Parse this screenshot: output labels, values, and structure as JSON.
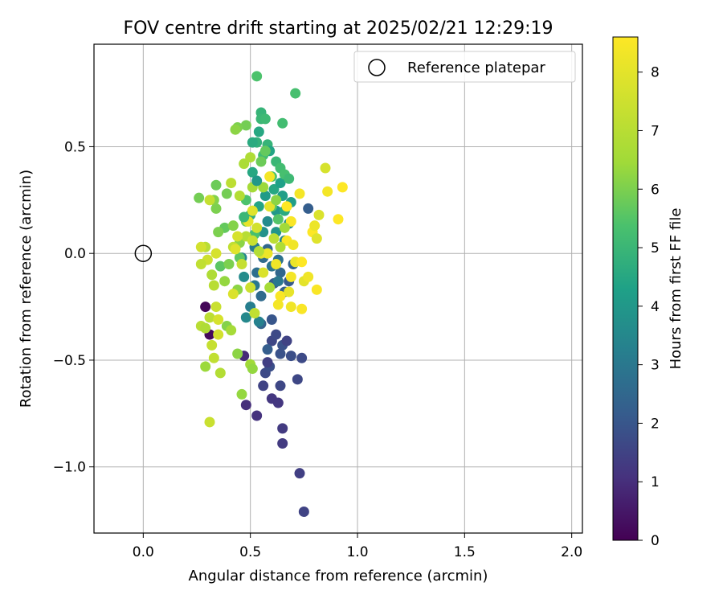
{
  "chart_data": {
    "type": "scatter",
    "title": "FOV centre drift starting at 2025/02/21 12:29:19",
    "xlabel": "Angular distance from reference (arcmin)",
    "ylabel": "Rotation from reference (arcmin)",
    "xlim": [
      -0.23,
      2.05
    ],
    "ylim": [
      -1.31,
      0.98
    ],
    "xticks": [
      {
        "value": 0.0,
        "label": "0.0"
      },
      {
        "value": 0.5,
        "label": "0.5"
      },
      {
        "value": 1.0,
        "label": "1.0"
      },
      {
        "value": 1.5,
        "label": "1.5"
      },
      {
        "value": 2.0,
        "label": "2.0"
      }
    ],
    "yticks": [
      {
        "value": 0.5,
        "label": "0.5"
      },
      {
        "value": 0.0,
        "label": "0.0"
      },
      {
        "value": -0.5,
        "label": "−0.5"
      },
      {
        "value": -1.0,
        "label": "−1.0"
      }
    ],
    "grid": true,
    "legend": {
      "position": "top-right",
      "entries": [
        {
          "label": "Reference platepar",
          "marker": "hollow-circle"
        }
      ]
    },
    "reference_point": {
      "x": 0.0,
      "y": 0.0
    },
    "colorbar": {
      "label": "Hours from first FF file",
      "colormap": "viridis",
      "range": [
        0,
        8.6
      ],
      "ticks": [
        {
          "value": 0,
          "label": "0"
        },
        {
          "value": 1,
          "label": "1"
        },
        {
          "value": 2,
          "label": "2"
        },
        {
          "value": 3,
          "label": "3"
        },
        {
          "value": 4,
          "label": "4"
        },
        {
          "value": 5,
          "label": "5"
        },
        {
          "value": 6,
          "label": "6"
        },
        {
          "value": 7,
          "label": "7"
        },
        {
          "value": 8,
          "label": "8"
        }
      ]
    },
    "points": [
      {
        "x": 0.29,
        "y": -0.25,
        "t": 0.1
      },
      {
        "x": 0.31,
        "y": -0.38,
        "t": 0.2
      },
      {
        "x": 0.47,
        "y": -0.48,
        "t": 0.9
      },
      {
        "x": 0.48,
        "y": -0.71,
        "t": 1.0
      },
      {
        "x": 0.53,
        "y": -0.76,
        "t": 1.1
      },
      {
        "x": 0.6,
        "y": -0.68,
        "t": 1.2
      },
      {
        "x": 0.63,
        "y": -0.7,
        "t": 1.2
      },
      {
        "x": 0.65,
        "y": -0.89,
        "t": 1.3
      },
      {
        "x": 0.65,
        "y": -0.82,
        "t": 1.3
      },
      {
        "x": 0.73,
        "y": -1.03,
        "t": 1.4
      },
      {
        "x": 0.75,
        "y": -1.21,
        "t": 1.5
      },
      {
        "x": 0.56,
        "y": -0.62,
        "t": 1.5
      },
      {
        "x": 0.57,
        "y": -0.56,
        "t": 1.7
      },
      {
        "x": 0.59,
        "y": -0.53,
        "t": 1.8
      },
      {
        "x": 0.64,
        "y": -0.62,
        "t": 1.6
      },
      {
        "x": 0.58,
        "y": -0.51,
        "t": 1.4
      },
      {
        "x": 0.6,
        "y": -0.41,
        "t": 1.6
      },
      {
        "x": 0.62,
        "y": -0.38,
        "t": 1.7
      },
      {
        "x": 0.64,
        "y": -0.47,
        "t": 1.9
      },
      {
        "x": 0.65,
        "y": -0.43,
        "t": 1.9
      },
      {
        "x": 0.67,
        "y": -0.41,
        "t": 1.5
      },
      {
        "x": 0.69,
        "y": -0.48,
        "t": 1.8
      },
      {
        "x": 0.72,
        "y": -0.59,
        "t": 1.6
      },
      {
        "x": 0.74,
        "y": -0.49,
        "t": 1.7
      },
      {
        "x": 0.58,
        "y": -0.45,
        "t": 2.2
      },
      {
        "x": 0.55,
        "y": -0.33,
        "t": 2.4
      },
      {
        "x": 0.6,
        "y": -0.31,
        "t": 2.0
      },
      {
        "x": 0.61,
        "y": -0.14,
        "t": 2.2
      },
      {
        "x": 0.64,
        "y": -0.09,
        "t": 2.5
      },
      {
        "x": 0.66,
        "y": -0.18,
        "t": 2.3
      },
      {
        "x": 0.68,
        "y": -0.13,
        "t": 2.1
      },
      {
        "x": 0.7,
        "y": -0.05,
        "t": 2.4
      },
      {
        "x": 0.77,
        "y": 0.21,
        "t": 2.2
      },
      {
        "x": 0.55,
        "y": -0.2,
        "t": 2.6
      },
      {
        "x": 0.53,
        "y": -0.09,
        "t": 2.7
      },
      {
        "x": 0.56,
        "y": -0.02,
        "t": 2.6
      },
      {
        "x": 0.63,
        "y": -0.03,
        "t": 2.8
      },
      {
        "x": 0.58,
        "y": 0.02,
        "t": 2.5
      },
      {
        "x": 0.6,
        "y": -0.06,
        "t": 2.9
      },
      {
        "x": 0.52,
        "y": -0.15,
        "t": 3.0
      },
      {
        "x": 0.5,
        "y": -0.25,
        "t": 3.2
      },
      {
        "x": 0.48,
        "y": -0.3,
        "t": 3.5
      },
      {
        "x": 0.54,
        "y": -0.32,
        "t": 3.3
      },
      {
        "x": 0.47,
        "y": -0.11,
        "t": 3.6
      },
      {
        "x": 0.46,
        "y": -0.02,
        "t": 3.4
      },
      {
        "x": 0.52,
        "y": 0.03,
        "t": 3.1
      },
      {
        "x": 0.56,
        "y": 0.1,
        "t": 3.8
      },
      {
        "x": 0.58,
        "y": 0.15,
        "t": 3.6
      },
      {
        "x": 0.62,
        "y": 0.1,
        "t": 3.9
      },
      {
        "x": 0.66,
        "y": 0.06,
        "t": 3.4
      },
      {
        "x": 0.68,
        "y": 0.14,
        "t": 3.7
      },
      {
        "x": 0.62,
        "y": 0.2,
        "t": 4.0
      },
      {
        "x": 0.65,
        "y": 0.27,
        "t": 4.2
      },
      {
        "x": 0.54,
        "y": 0.22,
        "t": 4.4
      },
      {
        "x": 0.57,
        "y": 0.27,
        "t": 4.1
      },
      {
        "x": 0.61,
        "y": 0.3,
        "t": 4.5
      },
      {
        "x": 0.64,
        "y": 0.33,
        "t": 4.3
      },
      {
        "x": 0.66,
        "y": 0.2,
        "t": 4.6
      },
      {
        "x": 0.69,
        "y": 0.24,
        "t": 4.2
      },
      {
        "x": 0.5,
        "y": 0.18,
        "t": 4.7
      },
      {
        "x": 0.51,
        "y": 0.38,
        "t": 4.5
      },
      {
        "x": 0.53,
        "y": 0.52,
        "t": 4.8
      },
      {
        "x": 0.51,
        "y": 0.52,
        "t": 4.6
      },
      {
        "x": 0.54,
        "y": 0.57,
        "t": 4.5
      },
      {
        "x": 0.58,
        "y": 0.51,
        "t": 4.9
      },
      {
        "x": 0.59,
        "y": 0.48,
        "t": 4.4
      },
      {
        "x": 0.55,
        "y": 0.66,
        "t": 4.9
      },
      {
        "x": 0.55,
        "y": 0.63,
        "t": 5.0
      },
      {
        "x": 0.57,
        "y": 0.63,
        "t": 5.1
      },
      {
        "x": 0.65,
        "y": 0.61,
        "t": 5.2
      },
      {
        "x": 0.71,
        "y": 0.75,
        "t": 5.3
      },
      {
        "x": 0.53,
        "y": 0.83,
        "t": 5.4
      },
      {
        "x": 0.62,
        "y": 0.43,
        "t": 5.0
      },
      {
        "x": 0.64,
        "y": 0.4,
        "t": 5.2
      },
      {
        "x": 0.66,
        "y": 0.37,
        "t": 5.3
      },
      {
        "x": 0.68,
        "y": 0.35,
        "t": 5.1
      },
      {
        "x": 0.6,
        "y": 0.36,
        "t": 5.4
      },
      {
        "x": 0.56,
        "y": 0.46,
        "t": 5.2
      },
      {
        "x": 0.6,
        "y": 0.22,
        "t": 5.6
      },
      {
        "x": 0.63,
        "y": 0.16,
        "t": 5.5
      },
      {
        "x": 0.52,
        "y": 0.09,
        "t": 5.3
      },
      {
        "x": 0.48,
        "y": 0.25,
        "t": 5.4
      },
      {
        "x": 0.36,
        "y": -0.06,
        "t": 5.6
      },
      {
        "x": 0.45,
        "y": -0.02,
        "t": 5.6
      },
      {
        "x": 0.57,
        "y": 0.48,
        "t": 5.7
      },
      {
        "x": 0.55,
        "y": 0.43,
        "t": 5.8
      },
      {
        "x": 0.48,
        "y": 0.6,
        "t": 5.9
      },
      {
        "x": 0.44,
        "y": 0.59,
        "t": 6.0
      },
      {
        "x": 0.43,
        "y": 0.58,
        "t": 6.2
      },
      {
        "x": 0.26,
        "y": 0.26,
        "t": 5.9
      },
      {
        "x": 0.34,
        "y": 0.32,
        "t": 5.8
      },
      {
        "x": 0.39,
        "y": 0.28,
        "t": 5.9
      },
      {
        "x": 0.34,
        "y": 0.21,
        "t": 6.0
      },
      {
        "x": 0.33,
        "y": 0.25,
        "t": 6.1
      },
      {
        "x": 0.38,
        "y": 0.12,
        "t": 5.7
      },
      {
        "x": 0.35,
        "y": 0.1,
        "t": 6.0
      },
      {
        "x": 0.42,
        "y": 0.13,
        "t": 6.1
      },
      {
        "x": 0.48,
        "y": 0.15,
        "t": 5.9
      },
      {
        "x": 0.45,
        "y": 0.05,
        "t": 6.2
      },
      {
        "x": 0.4,
        "y": -0.05,
        "t": 6.0
      },
      {
        "x": 0.38,
        "y": -0.13,
        "t": 6.3
      },
      {
        "x": 0.44,
        "y": -0.17,
        "t": 6.2
      },
      {
        "x": 0.39,
        "y": -0.34,
        "t": 6.1
      },
      {
        "x": 0.46,
        "y": -0.66,
        "t": 6.3
      },
      {
        "x": 0.44,
        "y": -0.47,
        "t": 6.2
      },
      {
        "x": 0.5,
        "y": -0.52,
        "t": 6.5
      },
      {
        "x": 0.51,
        "y": -0.54,
        "t": 6.3
      },
      {
        "x": 0.29,
        "y": -0.53,
        "t": 6.4
      },
      {
        "x": 0.41,
        "y": -0.36,
        "t": 6.6
      },
      {
        "x": 0.31,
        "y": -0.79,
        "t": 7.4
      },
      {
        "x": 0.36,
        "y": -0.56,
        "t": 6.9
      },
      {
        "x": 0.33,
        "y": -0.49,
        "t": 7.2
      },
      {
        "x": 0.32,
        "y": -0.43,
        "t": 7.3
      },
      {
        "x": 0.35,
        "y": -0.38,
        "t": 7.6
      },
      {
        "x": 0.27,
        "y": -0.34,
        "t": 7.0
      },
      {
        "x": 0.29,
        "y": -0.35,
        "t": 6.8
      },
      {
        "x": 0.31,
        "y": -0.3,
        "t": 7.1
      },
      {
        "x": 0.34,
        "y": -0.25,
        "t": 7.4
      },
      {
        "x": 0.35,
        "y": -0.31,
        "t": 7.7
      },
      {
        "x": 0.33,
        "y": -0.15,
        "t": 7.0
      },
      {
        "x": 0.32,
        "y": -0.1,
        "t": 6.8
      },
      {
        "x": 0.3,
        "y": -0.03,
        "t": 7.5
      },
      {
        "x": 0.34,
        "y": 0.0,
        "t": 7.7
      },
      {
        "x": 0.27,
        "y": -0.05,
        "t": 7.2
      },
      {
        "x": 0.29,
        "y": 0.03,
        "t": 7.0
      },
      {
        "x": 0.27,
        "y": 0.03,
        "t": 7.6
      },
      {
        "x": 0.31,
        "y": 0.25,
        "t": 7.3
      },
      {
        "x": 0.41,
        "y": 0.33,
        "t": 7.1
      },
      {
        "x": 0.45,
        "y": 0.27,
        "t": 6.9
      },
      {
        "x": 0.47,
        "y": 0.42,
        "t": 6.7
      },
      {
        "x": 0.5,
        "y": 0.45,
        "t": 6.8
      },
      {
        "x": 0.51,
        "y": 0.31,
        "t": 6.6
      },
      {
        "x": 0.42,
        "y": 0.03,
        "t": 7.2
      },
      {
        "x": 0.43,
        "y": 0.02,
        "t": 7.9
      },
      {
        "x": 0.46,
        "y": -0.05,
        "t": 7.3
      },
      {
        "x": 0.48,
        "y": 0.08,
        "t": 7.0
      },
      {
        "x": 0.51,
        "y": 0.06,
        "t": 7.4
      },
      {
        "x": 0.53,
        "y": 0.12,
        "t": 7.6
      },
      {
        "x": 0.56,
        "y": -0.09,
        "t": 7.8
      },
      {
        "x": 0.5,
        "y": -0.16,
        "t": 7.5
      },
      {
        "x": 0.52,
        "y": -0.28,
        "t": 7.2
      },
      {
        "x": 0.42,
        "y": -0.19,
        "t": 7.8
      },
      {
        "x": 0.44,
        "y": 0.08,
        "t": 7.7
      },
      {
        "x": 0.51,
        "y": 0.2,
        "t": 7.9
      },
      {
        "x": 0.49,
        "y": 0.15,
        "t": 8.1
      },
      {
        "x": 0.55,
        "y": 0.0,
        "t": 8.0
      },
      {
        "x": 0.58,
        "y": 0.0,
        "t": 8.2
      },
      {
        "x": 0.59,
        "y": 0.22,
        "t": 8.0
      },
      {
        "x": 0.59,
        "y": 0.36,
        "t": 8.4
      },
      {
        "x": 0.62,
        "y": -0.05,
        "t": 8.3
      },
      {
        "x": 0.64,
        "y": -0.2,
        "t": 8.5
      },
      {
        "x": 0.63,
        "y": -0.24,
        "t": 8.4
      },
      {
        "x": 0.69,
        "y": -0.25,
        "t": 8.3
      },
      {
        "x": 0.68,
        "y": -0.18,
        "t": 8.1
      },
      {
        "x": 0.69,
        "y": -0.11,
        "t": 8.4
      },
      {
        "x": 0.67,
        "y": 0.06,
        "t": 8.5
      },
      {
        "x": 0.69,
        "y": 0.15,
        "t": 8.5
      },
      {
        "x": 0.67,
        "y": 0.22,
        "t": 8.6
      },
      {
        "x": 0.7,
        "y": 0.04,
        "t": 8.3
      },
      {
        "x": 0.71,
        "y": -0.04,
        "t": 8.2
      },
      {
        "x": 0.73,
        "y": 0.28,
        "t": 8.4
      },
      {
        "x": 0.74,
        "y": -0.04,
        "t": 8.6
      },
      {
        "x": 0.74,
        "y": -0.26,
        "t": 8.5
      },
      {
        "x": 0.75,
        "y": -0.13,
        "t": 8.0
      },
      {
        "x": 0.77,
        "y": -0.11,
        "t": 8.3
      },
      {
        "x": 0.79,
        "y": 0.1,
        "t": 8.6
      },
      {
        "x": 0.8,
        "y": 0.13,
        "t": 8.2
      },
      {
        "x": 0.81,
        "y": 0.07,
        "t": 7.9
      },
      {
        "x": 0.82,
        "y": 0.18,
        "t": 7.8
      },
      {
        "x": 0.85,
        "y": 0.4,
        "t": 7.7
      },
      {
        "x": 0.86,
        "y": 0.29,
        "t": 8.4
      },
      {
        "x": 0.81,
        "y": -0.17,
        "t": 8.5
      },
      {
        "x": 0.91,
        "y": 0.16,
        "t": 8.6
      },
      {
        "x": 0.93,
        "y": 0.31,
        "t": 8.6
      },
      {
        "x": 0.56,
        "y": 0.31,
        "t": 6.4
      },
      {
        "x": 0.62,
        "y": 0.25,
        "t": 6.2
      },
      {
        "x": 0.66,
        "y": 0.12,
        "t": 6.5
      },
      {
        "x": 0.64,
        "y": 0.03,
        "t": 6.8
      },
      {
        "x": 0.59,
        "y": -0.16,
        "t": 6.6
      },
      {
        "x": 0.61,
        "y": 0.07,
        "t": 7.1
      },
      {
        "x": 0.54,
        "y": 0.01,
        "t": 6.9
      },
      {
        "x": 0.47,
        "y": 0.17,
        "t": 5.0
      },
      {
        "x": 0.53,
        "y": 0.34,
        "t": 4.0
      },
      {
        "x": 0.63,
        "y": -0.13,
        "t": 3.0
      }
    ]
  }
}
